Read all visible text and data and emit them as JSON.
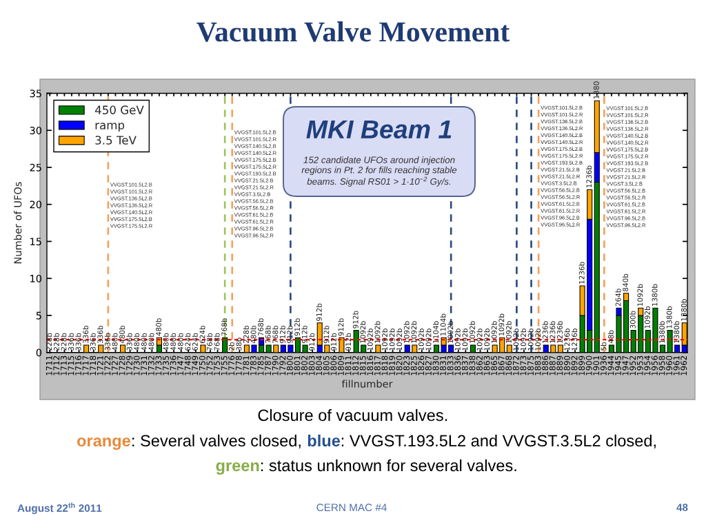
{
  "chart_data": {
    "type": "bar",
    "stacked": true,
    "title": "Vacuum Valve Movement",
    "xlabel": "fillnumber",
    "ylabel": "Number of UFOs",
    "categories": [
      "1711",
      "1712",
      "1713",
      "1715",
      "1716",
      "1717",
      "1718",
      "1721",
      "1722",
      "1727",
      "1728",
      "1729",
      "1730",
      "1731",
      "1732",
      "1733",
      "1735",
      "1736",
      "1747",
      "1748",
      "1749",
      "1750",
      "1752",
      "1753",
      "1755",
      "1776",
      "1778",
      "1781",
      "1783",
      "1785",
      "1787",
      "1790",
      "1792",
      "1800",
      "1801",
      "1802",
      "1803",
      "1804",
      "1805",
      "1806",
      "1809",
      "1811",
      "1812",
      "1815",
      "1816",
      "1817",
      "1818",
      "1819",
      "1820",
      "1823",
      "1825",
      "1826",
      "1827",
      "1830",
      "1831",
      "1833",
      "1836",
      "1837",
      "1838",
      "1862",
      "1863",
      "1865",
      "1867",
      "1868",
      "1872",
      "1873",
      "1875",
      "1883",
      "1886",
      "1887",
      "1889",
      "1890",
      "1892",
      "1899",
      "1900",
      "1901",
      "1936",
      "1944",
      "1945",
      "1947",
      "1952",
      "1953",
      "1954",
      "1956",
      "1958",
      "1960",
      "1961",
      "1962"
    ],
    "series": [
      {
        "name": "450 GeV",
        "color": "#008000",
        "values": [
          0,
          0,
          0,
          0,
          0,
          0,
          0,
          0,
          0,
          0,
          0,
          0,
          0,
          0,
          0,
          1,
          0,
          0,
          0,
          0,
          0,
          0,
          0,
          0,
          2,
          0,
          0,
          0,
          0,
          1,
          1,
          0,
          0,
          0,
          2,
          1,
          0,
          0,
          0,
          0,
          0,
          0,
          3,
          1,
          0,
          0,
          0,
          0,
          0,
          0,
          0,
          0,
          0,
          1,
          0,
          0,
          0,
          0,
          1,
          0,
          0,
          0,
          0,
          0,
          0,
          0,
          0,
          0,
          0,
          0,
          0,
          0,
          0,
          5,
          3,
          23,
          0,
          1,
          5,
          7,
          3,
          5,
          3,
          6,
          1,
          3,
          0,
          0
        ]
      },
      {
        "name": "ramp",
        "color": "#0000ff",
        "values": [
          0,
          0,
          0,
          0,
          0,
          0,
          0,
          0,
          0,
          0,
          0,
          0,
          0,
          0,
          0,
          0,
          0,
          0,
          0,
          0,
          0,
          0,
          0,
          0,
          0,
          0,
          0,
          0,
          1,
          1,
          0,
          0,
          1,
          1,
          0,
          0,
          0,
          1,
          0,
          0,
          0,
          0,
          0,
          0,
          0,
          0,
          0,
          0,
          0,
          1,
          0,
          0,
          0,
          0,
          1,
          1,
          0,
          0,
          0,
          0,
          0,
          0,
          0,
          0,
          0,
          0,
          0,
          0,
          1,
          0,
          0,
          0,
          0,
          0,
          15,
          4,
          0,
          0,
          1,
          0,
          0,
          0,
          0,
          0,
          0,
          0,
          1,
          1
        ]
      },
      {
        "name": "3.5 TeV",
        "color": "#ffa500",
        "values": [
          0,
          0,
          0,
          0,
          0,
          1,
          0,
          1,
          0,
          0,
          1,
          0,
          0,
          0,
          0,
          1,
          0,
          0,
          0,
          0,
          0,
          1,
          0,
          0,
          0,
          0,
          0,
          1,
          0,
          0,
          0,
          1,
          0,
          0,
          0,
          0,
          0,
          3,
          1,
          0,
          2,
          0,
          0,
          0,
          0,
          1,
          0,
          0,
          0,
          0,
          1,
          0,
          0,
          0,
          1,
          0,
          0,
          0,
          0,
          0,
          0,
          1,
          2,
          1,
          0,
          0,
          0,
          0,
          0,
          1,
          1,
          0,
          0,
          4,
          4,
          7,
          0,
          0,
          0,
          1,
          0,
          1,
          0,
          0,
          0,
          0,
          0,
          3
        ]
      }
    ],
    "ylim": [
      0,
      35
    ],
    "yticks": [
      0,
      5,
      10,
      15,
      20,
      25,
      30,
      35
    ],
    "legend": "top left",
    "ref_lines": [
      {
        "axis": "x",
        "value": "1722",
        "color": "#f5a05a",
        "line_style": "dashed",
        "label": "VVGST.101.5L2.B\nVVGST.101.5L2.R\nVVGST.136.5L2.B\nVVGST.136.5L2.R\nVVGST.140.5L2.R\nVVGST.175.5L2.B\nVVGST.175.5L2.R"
      },
      {
        "axis": "x",
        "value": "1755",
        "color": "#9dc35c",
        "line_style": "dashed"
      },
      {
        "axis": "x",
        "value": "1776",
        "color": "#f5a05a",
        "line_style": "dashed",
        "label": "VVGST.101.5L2.B\nVVGST.101.5L2.R\nVVGST.140.5L2.B\nVVGST.140.5L2.R\nVVGST.175.5L2.B\nVVGST.175.5L2.R\nVVGST.193.5L2.B\nVVGST.21.5L2.B\nVVGST.21.5L2.R\nVVGST.3.5L2.B\nVVGST.56.5L2.B\nVVGST.56.5L2.R\nVVGST.61.5L2.B\nVVGST.61.5L2.R\nVVGST.96.5L2.B\nVVGST.96.5L2.R"
      },
      {
        "axis": "x",
        "value": "1800",
        "color": "#2a4b7c",
        "line_style": "dashed"
      },
      {
        "axis": "x",
        "value": "1833",
        "color": "#2a4b7c",
        "line_style": "dashed"
      },
      {
        "axis": "x",
        "value": "1872",
        "color": "#2a4b7c",
        "line_style": "dashed"
      },
      {
        "axis": "x",
        "value": "1875",
        "color": "#2a4b7c",
        "line_style": "dashed"
      },
      {
        "axis": "x",
        "value": "1883",
        "color": "#f5a05a",
        "line_style": "dashed",
        "label": "VVGST.101.5L2.B\nVVGST.101.5L2.R\nVVGST.136.5L2.B\nVVGST.136.5L2.R\nVVGST.140.5L2.B\nVVGST.140.5L2.R\nVVGST.175.5L2.B\nVVGST.175.5L2.R\nVVGST.193.5L2.B\nVVGST.21.5L2.B\nVVGST.21.5L2.R\nVVGST.3.5L2.B\nVVGST.56.5L2.B\nVVGST.56.5L2.R\nVVGST.61.5L2.B\nVVGST.61.5L2.R\nVVGST.96.5L2.B\nVVGST.96.5L2.R"
      },
      {
        "axis": "x",
        "value": "1936",
        "color": "#f5a05a",
        "line_style": "dashed",
        "label": "VVGST.101.5L2.B\nVVGST.101.5L2.R\nVVGST.136.5L2.B\nVVGST.136.5L2.R\nVVGST.140.5L2.B\nVVGST.140.5L2.R\nVVGST.175.5L2.B\nVVGST.175.5L2.R\nVVGST.193.5L2.B\nVVGST.21.5L2.B\nVVGST.21.5L2.R\nVVGST.3.5L2.B\nVVGST.56.5L2.B\nVVGST.56.5L2.R\nVVGST.61.5L2.B\nVVGST.61.5L2.R\nVVGST.96.5L2.B\nVVGST.96.5L2.R"
      },
      {
        "axis": "y",
        "value": 1.73,
        "color": "#ff0000",
        "line_style": "dashed"
      }
    ],
    "annotations": [
      "MKI Beam 1",
      "152 candidate UFOs around injection\nregions in Pt. 2 for fills reaching stable\nbeams. Signal RS01 > 1·10$^{−2}$ Gy/s.",
      "Closure of vacuum valves.",
      "orange",
      ": Several valves closed, ",
      "blue",
      ": VVGST.193.5L2 and VVGST.3.5L2 closed,",
      "green",
      ": status unknown for several valves.",
      "August 22$^{th}$ 2011",
      "CERN MAC #4",
      "48",
      {
        "text": "228b",
        "x": "1711",
        "y": 0
      },
      {
        "text": "228b",
        "x": "1712",
        "y": 0
      },
      {
        "text": "228b",
        "x": "1713",
        "y": 0
      },
      {
        "text": "336b",
        "x": "1715",
        "y": 0
      },
      {
        "text": "336b",
        "x": "1716",
        "y": 0
      },
      {
        "text": "336b",
        "x": "1717",
        "y": 1
      },
      {
        "text": "336b",
        "x": "1718",
        "y": 0
      },
      {
        "text": "336b",
        "x": "1721",
        "y": 1
      },
      {
        "text": "336b",
        "x": "1722",
        "y": 0
      },
      {
        "text": "480b",
        "x": "1727",
        "y": 0
      },
      {
        "text": "480b",
        "x": "1728",
        "y": 1
      },
      {
        "text": "336b",
        "x": "1729",
        "y": 0
      },
      {
        "text": "480b",
        "x": "1730",
        "y": 0
      },
      {
        "text": "480b",
        "x": "1731",
        "y": 0
      },
      {
        "text": "480b",
        "x": "1732",
        "y": 0
      },
      {
        "text": "480b",
        "x": "1733",
        "y": 2
      },
      {
        "text": "480b",
        "x": "1735",
        "y": 0
      },
      {
        "text": "480b",
        "x": "1736",
        "y": 0
      },
      {
        "text": "480b",
        "x": "1747",
        "y": 0
      },
      {
        "text": "624b",
        "x": "1748",
        "y": 0
      },
      {
        "text": "624b",
        "x": "1749",
        "y": 0
      },
      {
        "text": "624b",
        "x": "1750",
        "y": 1
      },
      {
        "text": "768b",
        "x": "1752",
        "y": 0
      },
      {
        "text": "768b",
        "x": "1753",
        "y": 0
      },
      {
        "text": "768b",
        "x": "1755",
        "y": 2
      },
      {
        "text": "2b",
        "x": "1776",
        "y": 0
      },
      {
        "text": "38b",
        "x": "1778",
        "y": 0
      },
      {
        "text": "228b",
        "x": "1781",
        "y": 1
      },
      {
        "text": "480b",
        "x": "1783",
        "y": 1
      },
      {
        "text": "768b",
        "x": "1785",
        "y": 2
      },
      {
        "text": "768b",
        "x": "1787",
        "y": 1
      },
      {
        "text": "768b",
        "x": "1790",
        "y": 1
      },
      {
        "text": "912b",
        "x": "1792",
        "y": 1
      },
      {
        "text": "912b",
        "x": "1800",
        "y": 1
      },
      {
        "text": "912b",
        "x": "1801",
        "y": 2
      },
      {
        "text": "912b",
        "x": "1802",
        "y": 1
      },
      {
        "text": "912b",
        "x": "1803",
        "y": 0
      },
      {
        "text": "912b",
        "x": "1804",
        "y": 4
      },
      {
        "text": "912b",
        "x": "1805",
        "y": 1
      },
      {
        "text": "912b",
        "x": "1806",
        "y": 0
      },
      {
        "text": "912b",
        "x": "1809",
        "y": 2
      },
      {
        "text": "912b",
        "x": "1811",
        "y": 0
      },
      {
        "text": "912b",
        "x": "1812",
        "y": 3
      },
      {
        "text": "1092b",
        "x": "1815",
        "y": 1
      },
      {
        "text": "1092b",
        "x": "1816",
        "y": 0
      },
      {
        "text": "1092b",
        "x": "1817",
        "y": 1
      },
      {
        "text": "1092b",
        "x": "1818",
        "y": 0
      },
      {
        "text": "1092b",
        "x": "1819",
        "y": 0
      },
      {
        "text": "1092b",
        "x": "1820",
        "y": 0
      },
      {
        "text": "1092b",
        "x": "1823",
        "y": 1
      },
      {
        "text": "1092b",
        "x": "1825",
        "y": 1
      },
      {
        "text": "1092b",
        "x": "1826",
        "y": 0
      },
      {
        "text": "1092b",
        "x": "1827",
        "y": 0
      },
      {
        "text": "1104b",
        "x": "1830",
        "y": 1
      },
      {
        "text": "1104b",
        "x": "1831",
        "y": 2
      },
      {
        "text": "1092b",
        "x": "1833",
        "y": 1
      },
      {
        "text": "1092b",
        "x": "1836",
        "y": 0
      },
      {
        "text": "1092b",
        "x": "1837",
        "y": 0
      },
      {
        "text": "1092b",
        "x": "1838",
        "y": 1
      },
      {
        "text": "1092b",
        "x": "1862",
        "y": 0
      },
      {
        "text": "1092b",
        "x": "1863",
        "y": 0
      },
      {
        "text": "1092b",
        "x": "1865",
        "y": 1
      },
      {
        "text": "1092b",
        "x": "1867",
        "y": 2
      },
      {
        "text": "1092b",
        "x": "1868",
        "y": 1
      },
      {
        "text": "1092b",
        "x": "1872",
        "y": 0
      },
      {
        "text": "1092b",
        "x": "1873",
        "y": 0
      },
      {
        "text": "1092b",
        "x": "1875",
        "y": 0
      },
      {
        "text": "1092b",
        "x": "1883",
        "y": 0
      },
      {
        "text": "1236b",
        "x": "1886",
        "y": 1
      },
      {
        "text": "1236b",
        "x": "1887",
        "y": 1
      },
      {
        "text": "1236b",
        "x": "1889",
        "y": 1
      },
      {
        "text": "1236b",
        "x": "1890",
        "y": 0
      },
      {
        "text": "1236b",
        "x": "1892",
        "y": 0
      },
      {
        "text": "1236b",
        "x": "1899",
        "y": 9
      },
      {
        "text": "1236b",
        "x": "1900",
        "y": 22
      },
      {
        "text": "1380",
        "x": "1901",
        "y": 34
      },
      {
        "text": "5b",
        "x": "1936",
        "y": 0
      },
      {
        "text": "48b",
        "x": "1944",
        "y": 1
      },
      {
        "text": "264b",
        "x": "1945",
        "y": 6
      },
      {
        "text": "840b",
        "x": "1947",
        "y": 8
      },
      {
        "text": "300b",
        "x": "1952",
        "y": 3
      },
      {
        "text": "1092b",
        "x": "1953",
        "y": 6
      },
      {
        "text": "1092b",
        "x": "1954",
        "y": 3
      },
      {
        "text": "1380b",
        "x": "1956",
        "y": 6
      },
      {
        "text": "1380b",
        "x": "1958",
        "y": 1
      },
      {
        "text": "1380b",
        "x": "1960",
        "y": 3
      },
      {
        "text": "1380b",
        "x": "1961",
        "y": 1
      },
      {
        "text": "1380b",
        "x": "1962",
        "y": 4
      }
    ]
  }
}
